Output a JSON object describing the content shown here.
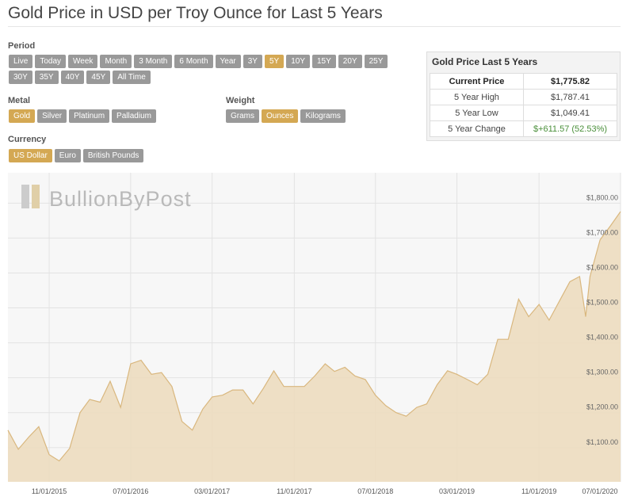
{
  "header": {
    "title": "Gold Price in USD per Troy Ounce for Last 5 Years"
  },
  "controls": {
    "period": {
      "label": "Period",
      "options": [
        "Live",
        "Today",
        "Week",
        "Month",
        "3 Month",
        "6 Month",
        "Year",
        "3Y",
        "5Y",
        "10Y",
        "15Y",
        "20Y",
        "25Y",
        "30Y",
        "35Y",
        "40Y",
        "45Y",
        "All Time"
      ],
      "selected": 8
    },
    "metal": {
      "label": "Metal",
      "options": [
        "Gold",
        "Silver",
        "Platinum",
        "Palladium"
      ],
      "selected": 0
    },
    "weight": {
      "label": "Weight",
      "options": [
        "Grams",
        "Ounces",
        "Kilograms"
      ],
      "selected": 1
    },
    "currency": {
      "label": "Currency",
      "options": [
        "US Dollar",
        "Euro",
        "British Pounds"
      ],
      "selected": 0
    }
  },
  "stats": {
    "title": "Gold Price Last 5 Years",
    "rows": [
      [
        "Current Price",
        "$1,775.82"
      ],
      [
        "5 Year High",
        "$1,787.41"
      ],
      [
        "5 Year Low",
        "$1,049.41"
      ],
      [
        "5 Year Change",
        "$+611.57 (52.53%)"
      ]
    ]
  },
  "chart_data": {
    "type": "area",
    "watermark": "BullionByPost",
    "x": [
      "2015-07-01",
      "2015-08-01",
      "2015-09-01",
      "2015-10-01",
      "2015-11-01",
      "2015-12-01",
      "2016-01-01",
      "2016-02-01",
      "2016-03-01",
      "2016-04-01",
      "2016-05-01",
      "2016-06-01",
      "2016-07-01",
      "2016-08-01",
      "2016-09-01",
      "2016-10-01",
      "2016-11-01",
      "2016-12-01",
      "2017-01-01",
      "2017-02-01",
      "2017-03-01",
      "2017-04-01",
      "2017-05-01",
      "2017-06-01",
      "2017-07-01",
      "2017-08-01",
      "2017-09-01",
      "2017-10-01",
      "2017-11-01",
      "2017-12-01",
      "2018-01-01",
      "2018-02-01",
      "2018-03-01",
      "2018-04-01",
      "2018-05-01",
      "2018-06-01",
      "2018-07-01",
      "2018-08-01",
      "2018-09-01",
      "2018-10-01",
      "2018-11-01",
      "2018-12-01",
      "2019-01-01",
      "2019-02-01",
      "2019-03-01",
      "2019-04-01",
      "2019-05-01",
      "2019-06-01",
      "2019-07-01",
      "2019-08-01",
      "2019-09-01",
      "2019-10-01",
      "2019-11-01",
      "2019-12-01",
      "2020-01-01",
      "2020-02-01",
      "2020-03-01",
      "2020-03-19",
      "2020-04-01",
      "2020-05-01",
      "2020-06-01",
      "2020-07-01"
    ],
    "series": [
      {
        "name": "Gold",
        "color": "#d9b77e",
        "fill": "#ecdcbf",
        "values": [
          1150,
          1095,
          1130,
          1160,
          1080,
          1062,
          1098,
          1200,
          1238,
          1230,
          1290,
          1215,
          1340,
          1350,
          1310,
          1315,
          1275,
          1175,
          1150,
          1210,
          1245,
          1250,
          1265,
          1265,
          1225,
          1270,
          1320,
          1275,
          1275,
          1275,
          1305,
          1340,
          1318,
          1330,
          1305,
          1295,
          1250,
          1220,
          1200,
          1190,
          1215,
          1225,
          1280,
          1320,
          1310,
          1295,
          1280,
          1310,
          1410,
          1410,
          1525,
          1475,
          1510,
          1465,
          1520,
          1575,
          1590,
          1475,
          1590,
          1695,
          1735,
          1775.82
        ]
      }
    ],
    "xlim": [
      "2015-07-01",
      "2020-07-01"
    ],
    "xticks": [
      {
        "value": "2015-11-01",
        "label": "11/01/2015"
      },
      {
        "value": "2016-07-01",
        "label": "07/01/2016"
      },
      {
        "value": "2017-03-01",
        "label": "03/01/2017"
      },
      {
        "value": "2017-11-01",
        "label": "11/01/2017"
      },
      {
        "value": "2018-07-01",
        "label": "07/01/2018"
      },
      {
        "value": "2019-03-01",
        "label": "03/01/2019"
      },
      {
        "value": "2019-11-01",
        "label": "11/01/2019"
      },
      {
        "value": "2020-07-01",
        "label": "07/01/2020"
      }
    ],
    "ylim": [
      1002,
      1887
    ],
    "yticks": [
      {
        "value": 1100,
        "label": "$1,100.00"
      },
      {
        "value": 1200,
        "label": "$1,200.00"
      },
      {
        "value": 1300,
        "label": "$1,300.00"
      },
      {
        "value": 1400,
        "label": "$1,400.00"
      },
      {
        "value": 1500,
        "label": "$1,500.00"
      },
      {
        "value": 1600,
        "label": "$1,600.00"
      },
      {
        "value": 1700,
        "label": "$1,700.00"
      },
      {
        "value": 1800,
        "label": "$1,800.00"
      }
    ],
    "grid": true
  }
}
